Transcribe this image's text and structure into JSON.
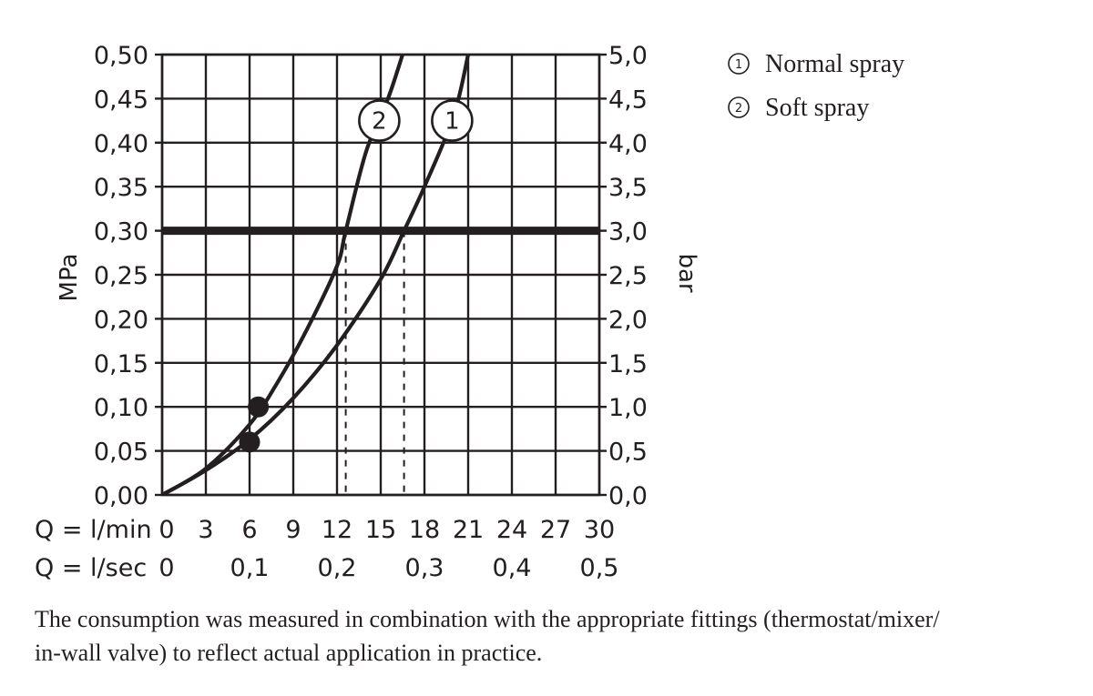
{
  "chart_data": {
    "type": "line",
    "ylabel_left": "MPa",
    "ylabel_right": "bar",
    "ylim": [
      0,
      0.5
    ],
    "xlim": [
      0,
      30
    ],
    "grid": true,
    "legend_position": "top-right",
    "y_ticks_left": [
      "0,50",
      "0,45",
      "0,40",
      "0,35",
      "0,30",
      "0,25",
      "0,20",
      "0,15",
      "0,10",
      "0,05",
      "0,00"
    ],
    "y_ticks_right": [
      "5,0",
      "4,5",
      "4,0",
      "3,5",
      "3,0",
      "2,5",
      "2,0",
      "1,5",
      "1,0",
      "0,5",
      "0,0"
    ],
    "x_rows": [
      {
        "label": "Q = l/min",
        "ticks": [
          "0",
          "3",
          "6",
          "9",
          "12",
          "15",
          "18",
          "21",
          "24",
          "27",
          "30"
        ],
        "values": [
          0,
          3,
          6,
          9,
          12,
          15,
          18,
          21,
          24,
          27,
          30
        ]
      },
      {
        "label": "Q = l/sec",
        "ticks": [
          "0",
          "0,1",
          "0,2",
          "0,3",
          "0,4",
          "0,5"
        ],
        "values": [
          0,
          6,
          12,
          18,
          24,
          30
        ]
      }
    ],
    "series": [
      {
        "name": "Normal spray",
        "marker": "1",
        "x": [
          0,
          3,
          6,
          9,
          12,
          15,
          16.6,
          18,
          20,
          21
        ],
        "y": [
          0,
          0.028,
          0.063,
          0.11,
          0.17,
          0.245,
          0.3,
          0.35,
          0.43,
          0.5
        ],
        "min_point": {
          "x": 6,
          "y": 0.06
        },
        "cross_x_at_0_30": 16.6,
        "label_at": {
          "x": 19.9,
          "y": 0.425
        }
      },
      {
        "name": "Soft spray",
        "marker": "2",
        "x": [
          0,
          3,
          6,
          8,
          10,
          12,
          12.6,
          14,
          15.5,
          16.5
        ],
        "y": [
          0,
          0.03,
          0.08,
          0.13,
          0.19,
          0.26,
          0.3,
          0.39,
          0.45,
          0.5
        ],
        "min_point": {
          "x": 6.6,
          "y": 0.1
        },
        "cross_x_at_0_30": 12.6,
        "label_at": {
          "x": 14.9,
          "y": 0.425
        }
      }
    ],
    "reference_line": {
      "y": 0.3,
      "label": "3,0"
    }
  },
  "legend": [
    {
      "symbol": "1",
      "label": "Normal spray"
    },
    {
      "symbol": "2",
      "label": "Soft spray"
    }
  ],
  "caption": {
    "line1": "The consumption was measured in combination with the appropriate fittings (thermostat/mixer/",
    "line2": "in-wall valve) to reflect actual application in practice."
  },
  "colors": {
    "ink": "#231f20",
    "background": "#ffffff"
  }
}
